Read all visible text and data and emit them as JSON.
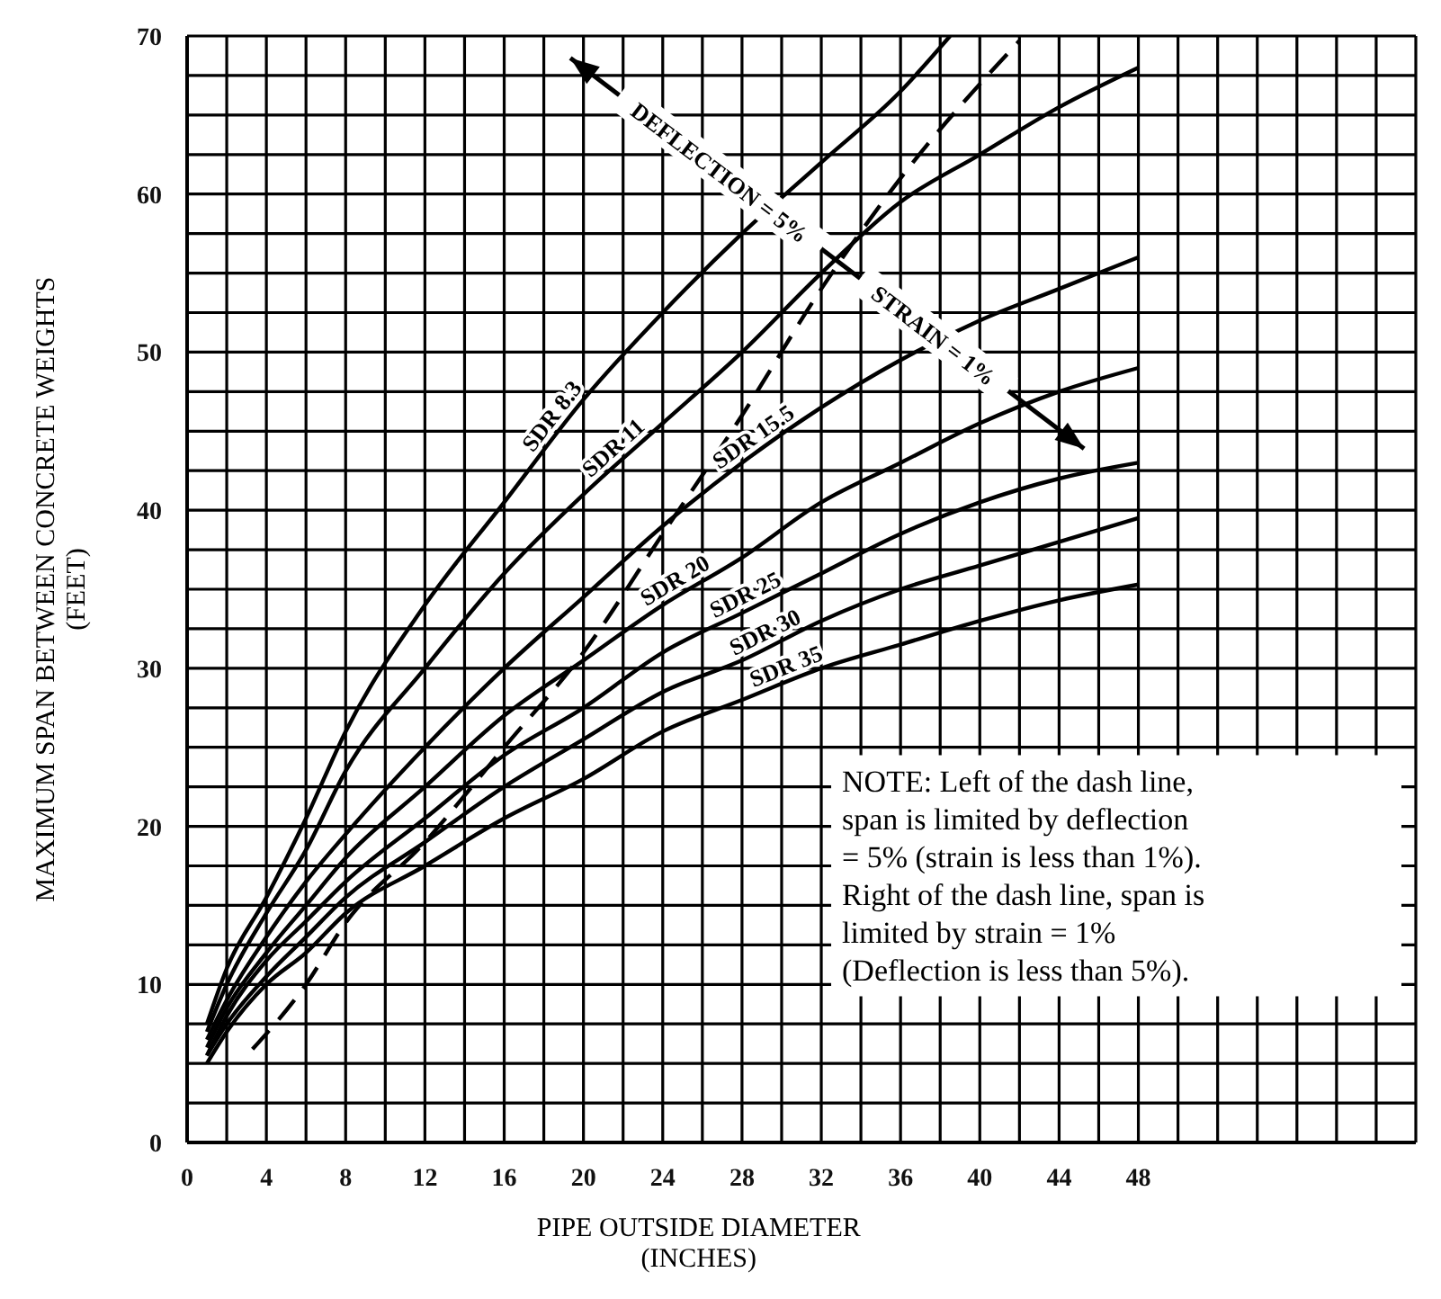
{
  "chart_data": {
    "type": "line",
    "xlabel": "PIPE OUTSIDE DIAMETER\n(INCHES)",
    "ylabel": "MAXIMUM SPAN BETWEEN CONCRETE WEIGHTS\n(FEET)",
    "xlim": [
      0,
      62
    ],
    "ylim": [
      0,
      70
    ],
    "xticks": [
      0,
      {
        "value": 2,
        "label": null
      },
      4,
      {
        "value": 6,
        "label": null
      },
      8,
      {
        "value": 10,
        "label": null
      },
      12,
      {
        "value": 14,
        "label": null
      },
      16,
      {
        "value": 18,
        "label": null
      },
      20,
      {
        "value": 22,
        "label": null
      },
      24,
      {
        "value": 26,
        "label": null
      },
      28,
      {
        "value": 30,
        "label": null
      },
      32,
      {
        "value": 34,
        "label": null
      },
      36,
      {
        "value": 38,
        "label": null
      },
      40,
      {
        "value": 42,
        "label": null
      },
      44,
      {
        "value": 46,
        "label": null
      },
      48,
      {
        "value": 50,
        "label": null
      },
      {
        "value": 52,
        "label": null
      },
      {
        "value": 54,
        "label": null
      },
      {
        "value": 56,
        "label": null
      },
      {
        "value": 58,
        "label": null
      },
      {
        "value": 60,
        "label": null
      },
      {
        "value": 62,
        "label": null
      }
    ],
    "yticks": [
      0,
      {
        "value": 2.5,
        "label": null
      },
      {
        "value": 5,
        "label": null
      },
      {
        "value": 7.5,
        "label": null
      },
      10,
      {
        "value": 12.5,
        "label": null
      },
      {
        "value": 15,
        "label": null
      },
      {
        "value": 17.5,
        "label": null
      },
      20,
      {
        "value": 22.5,
        "label": null
      },
      {
        "value": 25,
        "label": null
      },
      {
        "value": 27.5,
        "label": null
      },
      30,
      {
        "value": 32.5,
        "label": null
      },
      {
        "value": 35,
        "label": null
      },
      {
        "value": 37.5,
        "label": null
      },
      40,
      {
        "value": 42.5,
        "label": null
      },
      {
        "value": 45,
        "label": null
      },
      {
        "value": 47.5,
        "label": null
      },
      50,
      {
        "value": 52.5,
        "label": null
      },
      {
        "value": 55,
        "label": null
      },
      {
        "value": 57.5,
        "label": null
      },
      60,
      {
        "value": 62.5,
        "label": null
      },
      {
        "value": 65,
        "label": null
      },
      {
        "value": 67.5,
        "label": null
      },
      70
    ],
    "grid": true,
    "marker": "none",
    "series": [
      {
        "name": "SDR 8.3",
        "color": "#000000",
        "x": [
          1,
          2,
          4,
          6,
          8,
          12,
          16,
          20,
          24,
          28,
          32,
          36,
          38.5
        ],
        "values": [
          7.5,
          11,
          15.5,
          20.5,
          26,
          34,
          40.5,
          47,
          52.5,
          57.5,
          62,
          66.5,
          70
        ]
      },
      {
        "name": "SDR 11",
        "color": "#000000",
        "x": [
          1,
          2,
          4,
          6,
          8,
          12,
          16,
          20,
          24,
          28,
          32,
          36,
          40,
          44,
          48
        ],
        "values": [
          7,
          10,
          14.5,
          18.5,
          23.5,
          30,
          36,
          41,
          45.5,
          50,
          55,
          59.5,
          62.5,
          65.5,
          68
        ]
      },
      {
        "name": "SDR 15.5",
        "color": "#000000",
        "x": [
          1,
          2,
          4,
          6,
          8,
          12,
          16,
          20,
          24,
          28,
          32,
          36,
          40,
          44,
          48
        ],
        "values": [
          6.5,
          9,
          13,
          16.5,
          19.5,
          25,
          30,
          34.5,
          39,
          43,
          46.5,
          49.5,
          52,
          54,
          56
        ]
      },
      {
        "name": "SDR 20",
        "color": "#000000",
        "x": [
          1,
          2,
          4,
          6,
          8,
          12,
          16,
          20,
          24,
          28,
          32,
          36,
          40,
          44,
          48
        ],
        "values": [
          6,
          8.5,
          12,
          15,
          18,
          22.5,
          27,
          30.5,
          34,
          37,
          40.5,
          43,
          45.5,
          47.5,
          49
        ]
      },
      {
        "name": "SDR 25",
        "color": "#000000",
        "x": [
          1,
          2,
          4,
          6,
          8,
          12,
          16,
          20,
          24,
          28,
          32,
          36,
          40,
          44,
          48
        ],
        "values": [
          5.5,
          8,
          11.5,
          14,
          16.5,
          20.5,
          24.5,
          27.5,
          31,
          33.5,
          36,
          38.5,
          40.5,
          42,
          43
        ]
      },
      {
        "name": "SDR 30",
        "color": "#000000",
        "x": [
          1,
          2,
          4,
          6,
          8,
          12,
          16,
          20,
          24,
          28,
          32,
          36,
          40,
          44,
          48
        ],
        "values": [
          5.5,
          7.5,
          10.5,
          13,
          15.5,
          19,
          22.5,
          25.5,
          28.5,
          30.5,
          33,
          35,
          36.5,
          38,
          39.5
        ]
      },
      {
        "name": "SDR 35",
        "color": "#000000",
        "x": [
          1,
          2,
          4,
          6,
          8,
          12,
          16,
          20,
          24,
          28,
          32,
          36,
          40,
          44,
          48
        ],
        "values": [
          5,
          7,
          10,
          12,
          14.5,
          17.5,
          20.5,
          23,
          26,
          28,
          30,
          31.5,
          33,
          34.3,
          35.3
        ]
      },
      {
        "color": "#000000",
        "line_style": "dashed",
        "x": [
          3.3,
          6,
          8,
          12,
          16,
          20,
          24,
          28,
          32,
          36,
          42
        ],
        "values": [
          5.9,
          10,
          13.9,
          19,
          25,
          31,
          38.5,
          46,
          54,
          61,
          69.7
        ]
      }
    ],
    "annotations": [
      "DEFLECTION = 5%",
      "STRAIN = 1%",
      "NOTE: Left of the dash line,\nspan is limited by deflection\n= 5% (strain is less than 1%).\nRight of the dash line, span is\nlimited by strain = 1%\n(Deflection is less than 5%)."
    ]
  }
}
